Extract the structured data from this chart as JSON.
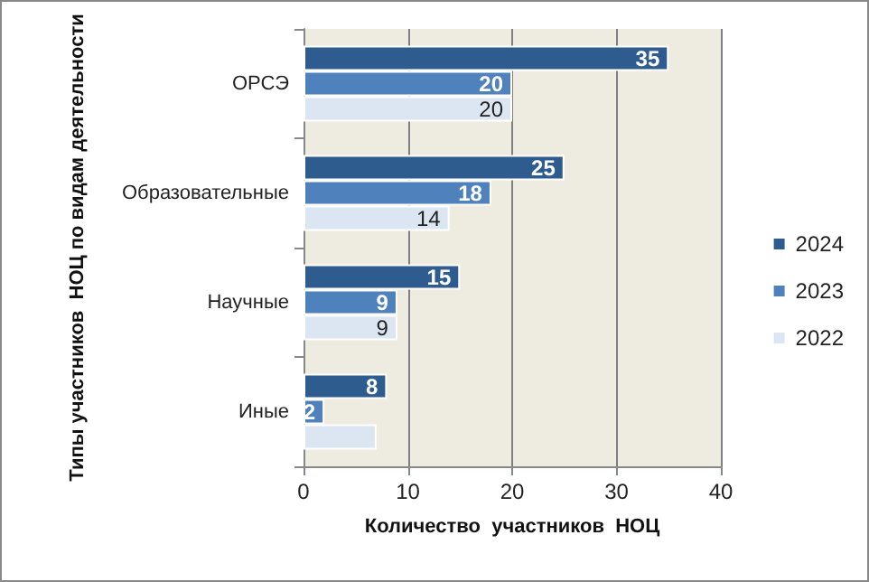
{
  "chart_data": {
    "type": "bar",
    "orientation": "horizontal",
    "xlabel": "Количество  участников  НОЦ",
    "ylabel": "Типы участников  НОЦ по видам деятельности",
    "categories": [
      "ОРСЭ",
      "Образовательные",
      "Научные",
      "Иные"
    ],
    "series": [
      {
        "name": "2024",
        "color": "#2f5c8f",
        "values": [
          35,
          25,
          15,
          8
        ],
        "value_labels": [
          "35",
          "25",
          "15",
          "8"
        ]
      },
      {
        "name": "2023",
        "color": "#4f81bd",
        "values": [
          20,
          18,
          9,
          2
        ],
        "value_labels": [
          "20",
          "18",
          "9",
          "2"
        ]
      },
      {
        "name": "2022",
        "color": "#dce6f2",
        "values": [
          20,
          14,
          9,
          7
        ],
        "value_labels": [
          "20",
          "14",
          "9",
          null
        ]
      }
    ],
    "xlim": [
      0,
      40
    ],
    "xticks": [
      0,
      10,
      20,
      30,
      40
    ],
    "grid": "x",
    "legend": "right"
  }
}
